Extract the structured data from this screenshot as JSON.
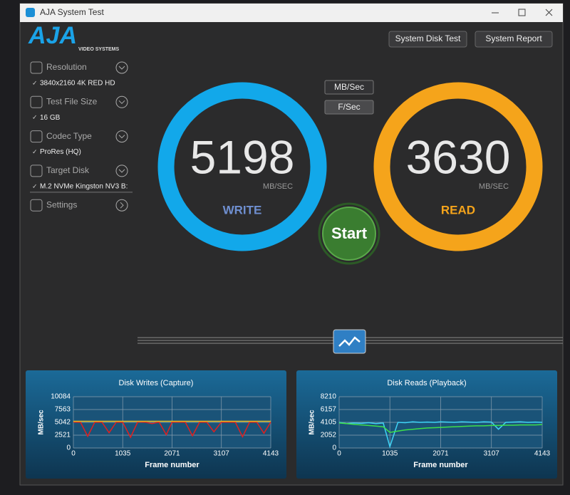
{
  "window": {
    "title": "AJA System Test"
  },
  "logo": {
    "brand": "AJA",
    "tagline": "VIDEO SYSTEMS"
  },
  "buttons": [
    "System Disk Test",
    "System Report"
  ],
  "sidebar": [
    {
      "label": "Resolution",
      "value": "3840x2160 4K RED HD"
    },
    {
      "label": "Test File Size",
      "value": "16 GB"
    },
    {
      "label": "Codec Type",
      "value": "ProRes (HQ)"
    },
    {
      "label": "Target Disk",
      "value": "M.2 NVMe Kingston NV3 B:"
    },
    {
      "label": "Settings"
    }
  ],
  "units": [
    "MB/Sec",
    "F/Sec"
  ],
  "gauges": [
    {
      "value": 5198,
      "unit": "MB/SEC",
      "label": "WRITE",
      "color": "#12a8ea",
      "label_color": "#6f8fd0"
    },
    {
      "value": 3630,
      "unit": "MB/SEC",
      "label": "READ",
      "color": "#f5a41b",
      "label_color": "#f5a41b"
    }
  ],
  "start": "Start",
  "chart_data": [
    {
      "type": "line",
      "title": "Disk Writes (Capture)",
      "y_label": "MB/sec",
      "x_label": "Frame number",
      "x": [
        0,
        150,
        300,
        450,
        600,
        750,
        900,
        1035,
        1200,
        1350,
        1500,
        1650,
        1800,
        1950,
        2071,
        2200,
        2350,
        2500,
        2650,
        2800,
        2950,
        3107,
        3250,
        3400,
        3550,
        3700,
        3850,
        4000,
        4143
      ],
      "xlim": [
        0,
        4143
      ],
      "xticks": [
        0,
        1035,
        2071,
        3107,
        4143
      ],
      "ylim": [
        0,
        10084
      ],
      "yticks": [
        0,
        2521,
        5042,
        7563,
        10084
      ],
      "grid": true,
      "series": [
        {
          "color": "#e02020",
          "values": [
            5100,
            5050,
            2300,
            5100,
            5080,
            3000,
            5100,
            5060,
            2100,
            5120,
            5090,
            4800,
            5100,
            2600,
            5080,
            5110,
            5050,
            2400,
            5100,
            5090,
            3200,
            5080,
            5100,
            5060,
            2200,
            5100,
            5080,
            2900,
            5100
          ]
        },
        {
          "color": "#e8c020",
          "values": [
            5250,
            5250,
            5250,
            5250,
            5250,
            5250,
            5250,
            5250,
            5250,
            5250,
            5250,
            5250,
            5250,
            5250,
            5250,
            5250,
            5250,
            5250,
            5250,
            5250,
            5250,
            5250,
            5250,
            5250,
            5250,
            5250,
            5250,
            5250,
            5250
          ]
        }
      ]
    },
    {
      "type": "line",
      "title": "Disk Reads (Playback)",
      "y_label": "MB/sec",
      "x_label": "Frame number",
      "x": [
        0,
        150,
        300,
        450,
        600,
        750,
        900,
        1035,
        1200,
        1350,
        1500,
        1650,
        1800,
        1950,
        2071,
        2200,
        2350,
        2500,
        2650,
        2800,
        2950,
        3107,
        3250,
        3400,
        3550,
        3700,
        3850,
        4000,
        4143
      ],
      "xlim": [
        0,
        4143
      ],
      "xticks": [
        0,
        1035,
        2071,
        3107,
        4143
      ],
      "ylim": [
        0,
        8210
      ],
      "yticks": [
        0,
        2052,
        4105,
        6157,
        8210
      ],
      "grid": true,
      "series": [
        {
          "color": "#3fd3f5",
          "values": [
            4100,
            3900,
            4000,
            3950,
            4050,
            3900,
            4000,
            200,
            4100,
            4050,
            4200,
            4100,
            4150,
            4100,
            4200,
            4150,
            4100,
            4200,
            4150,
            4100,
            4200,
            4150,
            3000,
            4100,
            4150,
            4200,
            4100,
            4150,
            4100
          ]
        },
        {
          "color": "#3ee04a",
          "values": [
            4000,
            3900,
            3800,
            3700,
            3600,
            3500,
            3400,
            2500,
            2700,
            2900,
            3000,
            3100,
            3200,
            3250,
            3300,
            3350,
            3400,
            3450,
            3500,
            3550,
            3550,
            3600,
            3600,
            3650,
            3650,
            3700,
            3700,
            3700,
            3750
          ]
        }
      ]
    }
  ]
}
